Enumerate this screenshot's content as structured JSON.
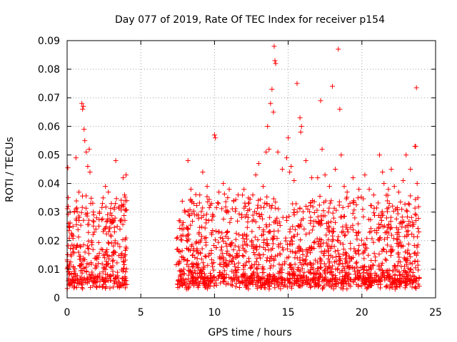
{
  "chart_data": {
    "type": "scatter",
    "title": "Day 077 of 2019, Rate Of TEC Index for receiver p154",
    "xlabel": "GPS time / hours",
    "ylabel": "ROTI / TECUs",
    "xlim": [
      0,
      25
    ],
    "ylim": [
      0,
      0.09
    ],
    "xticks": [
      0,
      5,
      10,
      15,
      20,
      25
    ],
    "yticks": [
      0,
      0.01,
      0.02,
      0.03,
      0.04,
      0.05,
      0.06,
      0.07,
      0.08,
      0.09
    ],
    "xtick_labels": [
      "0",
      "5",
      "10",
      "15",
      "20",
      "25"
    ],
    "ytick_labels": [
      "0",
      "0.01",
      "0.02",
      "0.03",
      "0.04",
      "0.05",
      "0.06",
      "0.07",
      "0.08",
      "0.09"
    ],
    "grid": true,
    "marker": "+",
    "color": "#ff0000",
    "data_gap_hours": [
      4.1,
      7.4
    ],
    "series": [
      {
        "name": "ROTI",
        "x": [
          0.05,
          0.1,
          0.2,
          0.3,
          0.4,
          0.5,
          0.6,
          0.8,
          1.0,
          1.05,
          1.1,
          1.15,
          1.2,
          1.3,
          1.4,
          1.5,
          1.55,
          1.6,
          1.8,
          2.0,
          2.2,
          2.4,
          2.6,
          2.8,
          3.0,
          3.2,
          3.3,
          3.4,
          3.6,
          3.8,
          3.9,
          4.0,
          4.05,
          7.6,
          7.8,
          8.0,
          8.2,
          8.4,
          8.6,
          8.8,
          9.0,
          9.2,
          9.5,
          9.8,
          10.0,
          10.05,
          10.3,
          10.6,
          11.0,
          11.3,
          11.6,
          12.0,
          12.3,
          12.6,
          12.8,
          13.0,
          13.3,
          13.5,
          13.6,
          13.7,
          13.8,
          13.9,
          14.0,
          14.05,
          14.1,
          14.15,
          14.3,
          14.6,
          14.9,
          15.0,
          15.1,
          15.2,
          15.4,
          15.6,
          15.8,
          15.85,
          15.9,
          16.2,
          16.6,
          17.0,
          17.2,
          17.3,
          17.5,
          17.8,
          18.0,
          18.2,
          18.4,
          18.5,
          18.6,
          18.8,
          19.0,
          19.4,
          19.8,
          20.2,
          20.5,
          20.8,
          21.2,
          21.4,
          21.5,
          21.8,
          22.0,
          22.2,
          22.5,
          22.8,
          23.0,
          23.3,
          23.6,
          23.65,
          23.7,
          23.75,
          23.8
        ],
        "y": [
          0.0455,
          0.026,
          0.03,
          0.022,
          0.025,
          0.03,
          0.049,
          0.037,
          0.068,
          0.066,
          0.067,
          0.059,
          0.055,
          0.051,
          0.046,
          0.052,
          0.044,
          0.033,
          0.029,
          0.028,
          0.03,
          0.033,
          0.039,
          0.037,
          0.033,
          0.031,
          0.048,
          0.025,
          0.027,
          0.042,
          0.036,
          0.043,
          0.034,
          0.027,
          0.024,
          0.03,
          0.048,
          0.038,
          0.033,
          0.029,
          0.036,
          0.044,
          0.039,
          0.033,
          0.057,
          0.056,
          0.037,
          0.04,
          0.038,
          0.034,
          0.036,
          0.038,
          0.033,
          0.036,
          0.043,
          0.047,
          0.039,
          0.051,
          0.06,
          0.052,
          0.068,
          0.073,
          0.065,
          0.088,
          0.083,
          0.082,
          0.051,
          0.045,
          0.049,
          0.056,
          0.044,
          0.046,
          0.041,
          0.075,
          0.063,
          0.058,
          0.06,
          0.048,
          0.042,
          0.042,
          0.069,
          0.052,
          0.043,
          0.039,
          0.074,
          0.045,
          0.087,
          0.066,
          0.05,
          0.039,
          0.037,
          0.042,
          0.038,
          0.043,
          0.038,
          0.036,
          0.05,
          0.044,
          0.04,
          0.038,
          0.045,
          0.039,
          0.037,
          0.041,
          0.05,
          0.045,
          0.053,
          0.053,
          0.0735,
          0.04,
          0.035
        ]
      }
    ]
  }
}
